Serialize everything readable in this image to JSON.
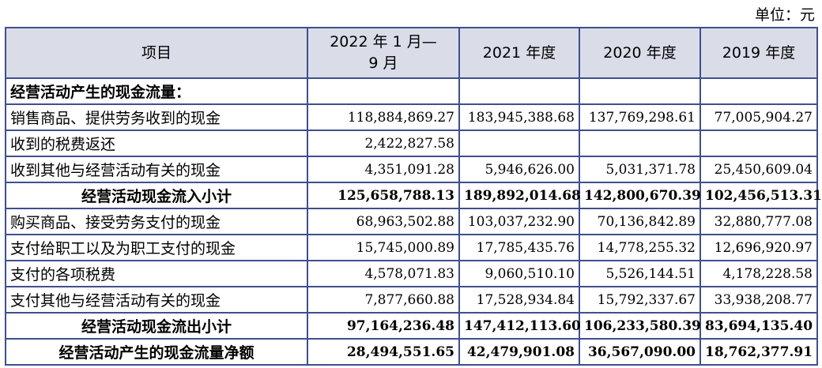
{
  "unit_label": "单位：元",
  "header": {
    "item": "项目",
    "col1_line1": "2022 年 1 月—",
    "col1_line2": "9 月",
    "col2": "2021 年度",
    "col3": "2020 年度",
    "col4": "2019 年度"
  },
  "rows": [
    {
      "label": "经营活动产生的现金流量：",
      "v1": "",
      "v2": "",
      "v3": "",
      "v4": ""
    },
    {
      "label": "销售商品、提供劳务收到的现金",
      "v1": "118,884,869.27",
      "v2": "183,945,388.68",
      "v3": "137,769,298.61",
      "v4": "77,005,904.27"
    },
    {
      "label": "收到的税费返还",
      "v1": "2,422,827.58",
      "v2": "",
      "v3": "",
      "v4": ""
    },
    {
      "label": "收到其他与经营活动有关的现金",
      "v1": "4,351,091.28",
      "v2": "5,946,626.00",
      "v3": "5,031,371.78",
      "v4": "25,450,609.04"
    },
    {
      "label": "经营活动现金流入小计",
      "v1": "125,658,788.13",
      "v2": "189,892,014.68",
      "v3": "142,800,670.39",
      "v4": "102,456,513.31"
    },
    {
      "label": "购买商品、接受劳务支付的现金",
      "v1": "68,963,502.88",
      "v2": "103,037,232.90",
      "v3": "70,136,842.89",
      "v4": "32,880,777.08"
    },
    {
      "label": "支付给职工以及为职工支付的现金",
      "v1": "15,745,000.89",
      "v2": "17,785,435.76",
      "v3": "14,778,255.32",
      "v4": "12,696,920.97"
    },
    {
      "label": "支付的各项税费",
      "v1": "4,578,071.83",
      "v2": "9,060,510.10",
      "v3": "5,526,144.51",
      "v4": "4,178,228.58"
    },
    {
      "label": "支付其他与经营活动有关的现金",
      "v1": "7,877,660.88",
      "v2": "17,528,934.84",
      "v3": "15,792,337.67",
      "v4": "33,938,208.77"
    },
    {
      "label": "经营活动现金流出小计",
      "v1": "97,164,236.48",
      "v2": "147,412,113.60",
      "v3": "106,233,580.39",
      "v4": "83,694,135.40"
    },
    {
      "label": "经营活动产生的现金流量净额",
      "v1": "28,494,551.65",
      "v2": "42,479,901.08",
      "v3": "36,567,090.00",
      "v4": "18,762,377.91"
    }
  ]
}
